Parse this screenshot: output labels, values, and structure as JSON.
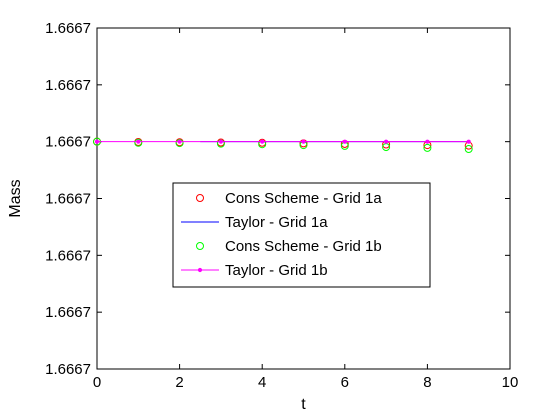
{
  "chart_data": {
    "type": "line",
    "title": "",
    "xlabel": "t",
    "ylabel": "Mass",
    "xlim": [
      0,
      10
    ],
    "ylim": [
      0,
      6
    ],
    "x_ticks": [
      0,
      2,
      4,
      6,
      8,
      10
    ],
    "x_tick_labels": [
      "0",
      "2",
      "4",
      "6",
      "8",
      "10"
    ],
    "y_ticks": [
      0,
      1,
      2,
      3,
      4,
      5,
      6
    ],
    "y_tick_labels": [
      "1.6667",
      "1.6667",
      "1.6667",
      "1.6667",
      "1.6667",
      "1.6667",
      "1.6667"
    ],
    "grid": false,
    "legend_position": "center-left",
    "series": [
      {
        "name": "Cons Scheme - Grid 1a",
        "style": "circle-markers",
        "color": "#ff0000",
        "x": [
          0,
          1,
          2,
          3,
          4,
          5,
          6,
          7,
          8,
          9
        ],
        "y": [
          4.0,
          3.995,
          3.99,
          3.985,
          3.98,
          3.97,
          3.96,
          3.95,
          3.94,
          3.93
        ]
      },
      {
        "name": "Taylor - Grid 1a",
        "style": "line",
        "color": "#0000ff",
        "x": [
          2.5,
          9
        ],
        "y": [
          4.0,
          4.0
        ]
      },
      {
        "name": "Cons Scheme - Grid 1b",
        "style": "circle-markers",
        "color": "#00ff00",
        "x": [
          0,
          1,
          2,
          3,
          4,
          5,
          6,
          7,
          8,
          9
        ],
        "y": [
          4.0,
          3.98,
          3.975,
          3.965,
          3.955,
          3.94,
          3.925,
          3.905,
          3.89,
          3.87
        ]
      },
      {
        "name": "Taylor - Grid 1b",
        "style": "line-dot-markers",
        "color": "#ff00ff",
        "x": [
          0,
          1,
          2,
          3,
          4,
          5,
          6,
          7,
          8,
          9
        ],
        "y": [
          4.0,
          4.0,
          4.0,
          4.0,
          4.0,
          4.0,
          4.0,
          4.0,
          4.0,
          4.0
        ]
      }
    ]
  }
}
